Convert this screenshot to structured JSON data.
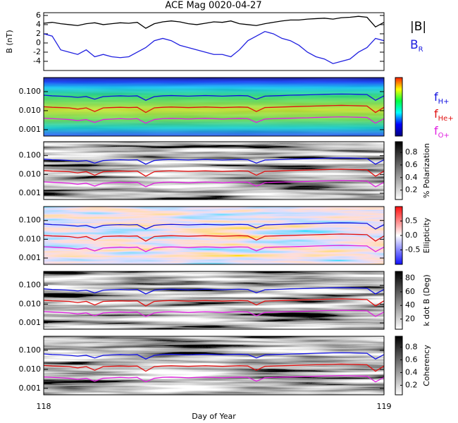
{
  "chart_data": [
    {
      "type": "line",
      "title": "ACE Mag 0020-04-27",
      "ylabel": "B (nT)",
      "xlim": [
        118,
        119
      ],
      "x": [
        118,
        118.025,
        118.05,
        118.075,
        118.1,
        118.125,
        118.15,
        118.175,
        118.2,
        118.225,
        118.25,
        118.275,
        118.3,
        118.325,
        118.35,
        118.375,
        118.4,
        118.425,
        118.45,
        118.475,
        118.5,
        118.525,
        118.55,
        118.575,
        118.6,
        118.625,
        118.65,
        118.675,
        118.7,
        118.725,
        118.75,
        118.775,
        118.8,
        118.825,
        118.85,
        118.875,
        118.9,
        118.925,
        118.95,
        118.975,
        119
      ],
      "ylim": [
        -6,
        6.6
      ],
      "yticks": [
        -4,
        -2,
        0,
        2,
        4,
        6
      ],
      "series": [
        {
          "name": "|B|",
          "color": "#000000",
          "values": [
            4.3,
            4.5,
            4.2,
            4.0,
            3.8,
            4.2,
            4.4,
            4.0,
            4.2,
            4.4,
            4.3,
            4.5,
            3.2,
            4.2,
            4.6,
            4.8,
            4.6,
            4.2,
            4.0,
            4.3,
            4.6,
            4.5,
            4.8,
            4.2,
            4.0,
            3.8,
            4.2,
            4.5,
            4.8,
            5.0,
            5.0,
            5.2,
            5.3,
            5.4,
            5.2,
            5.5,
            5.6,
            5.8,
            5.6,
            3.5,
            4.5
          ]
        },
        {
          "name": "BR",
          "color": "#2020e0",
          "values": [
            2.0,
            1.5,
            -1.5,
            -2.0,
            -2.5,
            -1.5,
            -3.0,
            -2.5,
            -3.0,
            -3.2,
            -3.0,
            -2.0,
            -1.0,
            0.5,
            1.0,
            0.5,
            -0.5,
            -1.0,
            -1.5,
            -2.0,
            -2.5,
            -2.5,
            -3.0,
            -1.5,
            0.5,
            1.5,
            2.5,
            2.0,
            1.0,
            0.5,
            -0.5,
            -2.0,
            -3.0,
            -3.5,
            -4.5,
            -4.0,
            -3.5,
            -2.0,
            -1.0,
            1.0,
            0.5
          ]
        }
      ]
    },
    {
      "type": "spectrogram",
      "log_y": true,
      "ylim": [
        0.00046,
        0.55
      ],
      "yticks": [
        {
          "value": 0.1,
          "label": "0.100"
        },
        {
          "value": 0.01,
          "label": "0.010"
        },
        {
          "value": 0.001,
          "label": "0.001"
        }
      ],
      "colorbar": {
        "colors": [
          "#ff2000",
          "#ffff00",
          "#00ff40",
          "#00ffff",
          "#0000ff",
          "#000080"
        ]
      },
      "series": [
        {
          "name": "fH+",
          "color": "#1010e0",
          "values": [
            0.065,
            0.06,
            0.058,
            0.055,
            0.05,
            0.055,
            0.04,
            0.055,
            0.058,
            0.06,
            0.058,
            0.06,
            0.035,
            0.055,
            0.06,
            0.062,
            0.06,
            0.058,
            0.06,
            0.062,
            0.06,
            0.058,
            0.06,
            0.062,
            0.06,
            0.04,
            0.058,
            0.06,
            0.062,
            0.065,
            0.066,
            0.068,
            0.07,
            0.072,
            0.074,
            0.075,
            0.074,
            0.072,
            0.07,
            0.035,
            0.06
          ]
        },
        {
          "name": "fHe+",
          "color": "#e01010",
          "values": [
            0.016,
            0.015,
            0.0145,
            0.014,
            0.012,
            0.014,
            0.009,
            0.014,
            0.0145,
            0.015,
            0.0145,
            0.015,
            0.008,
            0.014,
            0.015,
            0.0155,
            0.015,
            0.0145,
            0.015,
            0.0155,
            0.015,
            0.0145,
            0.015,
            0.0155,
            0.015,
            0.009,
            0.0145,
            0.015,
            0.0155,
            0.016,
            0.0165,
            0.017,
            0.0175,
            0.018,
            0.0185,
            0.019,
            0.0185,
            0.018,
            0.0175,
            0.008,
            0.015
          ]
        },
        {
          "name": "fO+",
          "color": "#e020e0",
          "values": [
            0.004,
            0.0038,
            0.0036,
            0.0034,
            0.003,
            0.0034,
            0.0024,
            0.0034,
            0.0036,
            0.0038,
            0.0036,
            0.0038,
            0.0022,
            0.0034,
            0.0038,
            0.0039,
            0.0038,
            0.0036,
            0.0038,
            0.0039,
            0.0038,
            0.0036,
            0.0038,
            0.0039,
            0.0038,
            0.0024,
            0.0036,
            0.0038,
            0.0039,
            0.004,
            0.0041,
            0.0042,
            0.0044,
            0.0045,
            0.0046,
            0.0047,
            0.0046,
            0.0045,
            0.0044,
            0.0022,
            0.0038
          ]
        }
      ]
    },
    {
      "type": "spectrogram",
      "log_y": true,
      "ylim": [
        0.00046,
        0.55
      ],
      "yticks": [
        {
          "value": 0.1,
          "label": "0.100"
        },
        {
          "value": 0.01,
          "label": "0.010"
        },
        {
          "value": 0.001,
          "label": "0.001"
        }
      ],
      "colorbar": {
        "label": "% Polarization",
        "zlim": [
          0.05,
          0.97
        ],
        "zticks": [
          0.2,
          0.4,
          0.6,
          0.8
        ],
        "colors": [
          "#000000",
          "#ffffff"
        ]
      }
    },
    {
      "type": "spectrogram",
      "log_y": true,
      "ylim": [
        0.00046,
        0.55
      ],
      "yticks": [
        {
          "value": 0.1,
          "label": "0.100"
        },
        {
          "value": 0.01,
          "label": "0.010"
        },
        {
          "value": 0.001,
          "label": "0.001"
        }
      ],
      "colorbar": {
        "label": "Ellipticity",
        "zlim": [
          -1,
          1
        ],
        "zticks": [
          -0.5,
          {
            "value": 0,
            "label": "0.0"
          },
          0.5
        ],
        "colors": [
          "#ff1010",
          "#ffffff",
          "#1010ff"
        ]
      }
    },
    {
      "type": "spectrogram",
      "log_y": true,
      "ylim": [
        0.00046,
        0.55
      ],
      "yticks": [
        {
          "value": 0.1,
          "label": "0.100"
        },
        {
          "value": 0.01,
          "label": "0.010"
        },
        {
          "value": 0.001,
          "label": "0.001"
        }
      ],
      "colorbar": {
        "label": "k dot B (Deg)",
        "zlim": [
          5,
          90
        ],
        "zticks": [
          20,
          40,
          60,
          80
        ],
        "colors": [
          "#000000",
          "#ffffff"
        ]
      }
    },
    {
      "type": "spectrogram",
      "log_y": true,
      "ylim": [
        0.00046,
        0.55
      ],
      "yticks": [
        {
          "value": 0.1,
          "label": "0.100"
        },
        {
          "value": 0.01,
          "label": "0.010"
        },
        {
          "value": 0.001,
          "label": "0.001"
        }
      ],
      "colorbar": {
        "label": "Coherency",
        "zlim": [
          0.05,
          0.97
        ],
        "zticks": [
          0.2,
          0.4,
          0.6,
          0.8
        ],
        "colors": [
          "#000000",
          "#ffffff"
        ]
      },
      "xticks": [
        118,
        119
      ],
      "xlabel": "Day of Year"
    }
  ]
}
